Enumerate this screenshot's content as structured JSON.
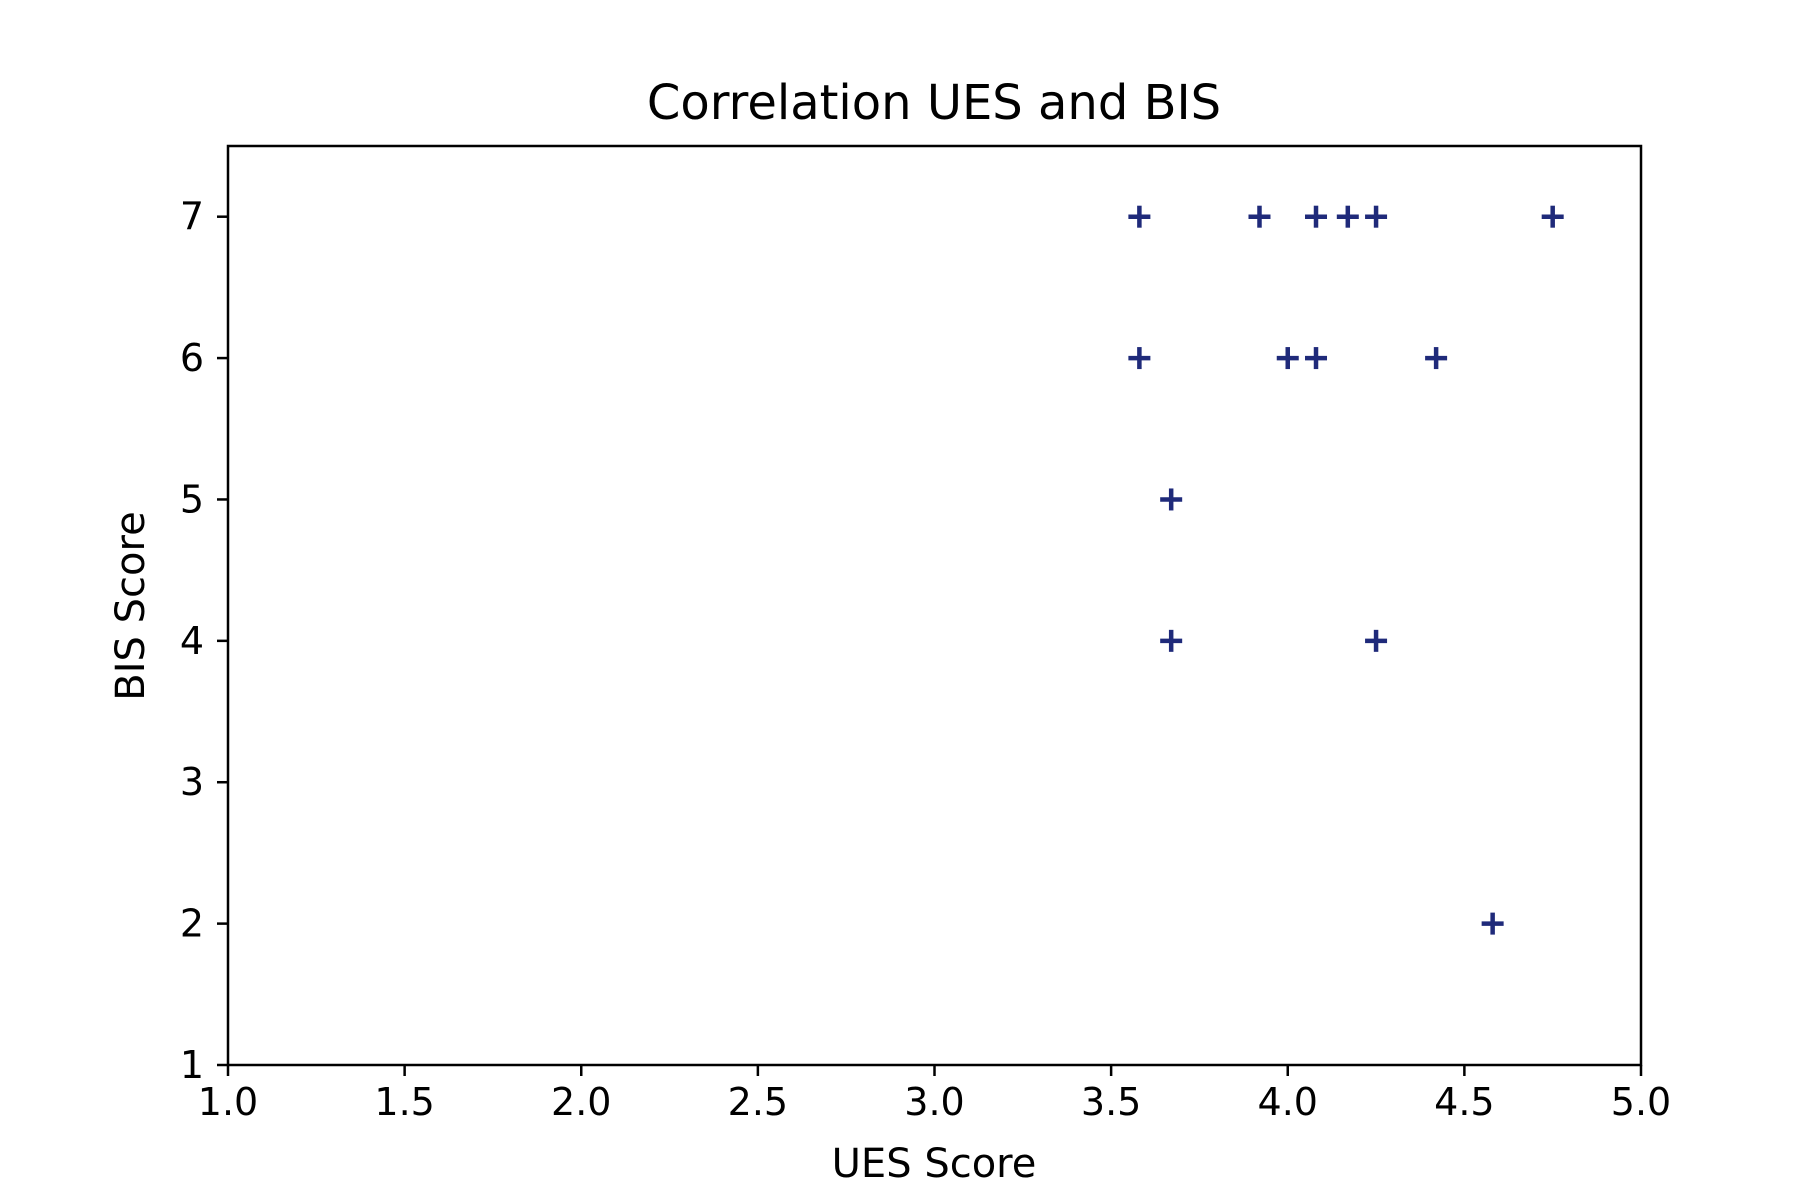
{
  "chart_data": {
    "type": "scatter",
    "title": "Correlation UES and BIS",
    "xlabel": "UES Score",
    "ylabel": "BIS Score",
    "xlim": [
      1.0,
      5.0
    ],
    "ylim": [
      1.0,
      7.5
    ],
    "xticks": [
      "1.0",
      "1.5",
      "2.0",
      "2.5",
      "3.0",
      "3.5",
      "4.0",
      "4.5",
      "5.0"
    ],
    "yticks": [
      "1",
      "2",
      "3",
      "4",
      "5",
      "6",
      "7"
    ],
    "grid": false,
    "marker": "plus",
    "marker_color": "#1f2a7a",
    "points": [
      {
        "x": 3.58,
        "y": 7
      },
      {
        "x": 3.92,
        "y": 7
      },
      {
        "x": 4.08,
        "y": 7
      },
      {
        "x": 4.17,
        "y": 7
      },
      {
        "x": 4.25,
        "y": 7
      },
      {
        "x": 4.75,
        "y": 7
      },
      {
        "x": 3.58,
        "y": 6
      },
      {
        "x": 4.0,
        "y": 6
      },
      {
        "x": 4.08,
        "y": 6
      },
      {
        "x": 4.42,
        "y": 6
      },
      {
        "x": 3.67,
        "y": 5
      },
      {
        "x": 3.67,
        "y": 4
      },
      {
        "x": 4.25,
        "y": 4
      },
      {
        "x": 4.58,
        "y": 2
      }
    ]
  }
}
